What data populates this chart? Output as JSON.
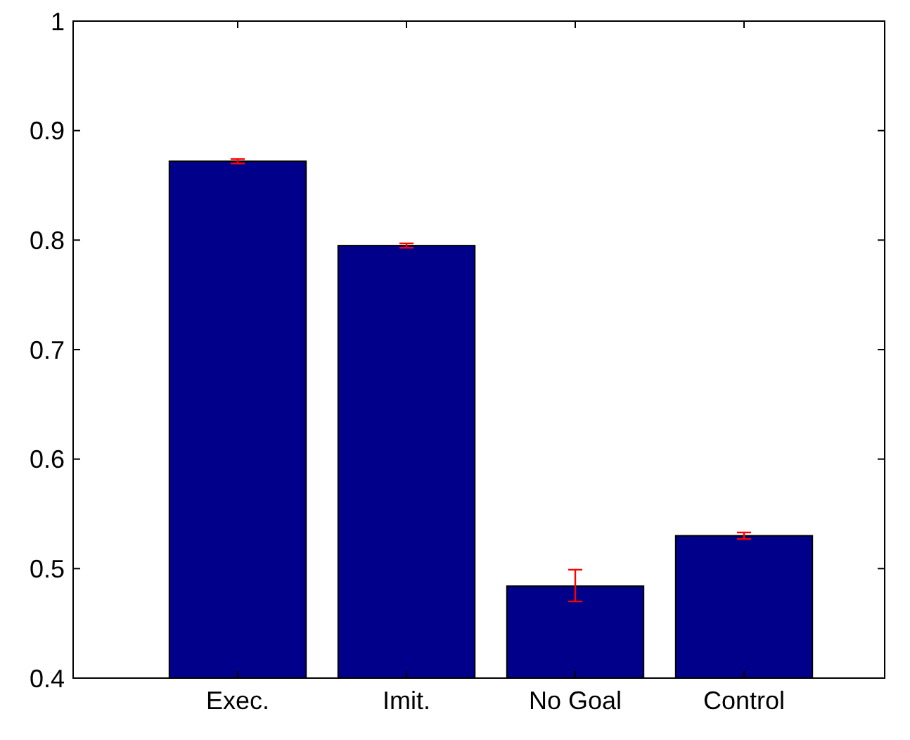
{
  "chart_data": {
    "type": "bar",
    "categories": [
      "Exec.",
      "Imit.",
      "No Goal",
      "Control"
    ],
    "values": [
      0.872,
      0.795,
      0.484,
      0.53
    ],
    "errors": [
      0.002,
      0.002,
      [
        0.47,
        0.499
      ],
      0.003
    ],
    "color": "#00008b",
    "ylim": [
      0.4,
      1
    ],
    "yticks": [
      0.4,
      0.5,
      0.6,
      0.7,
      0.8,
      0.9,
      1
    ],
    "grid": false
  }
}
